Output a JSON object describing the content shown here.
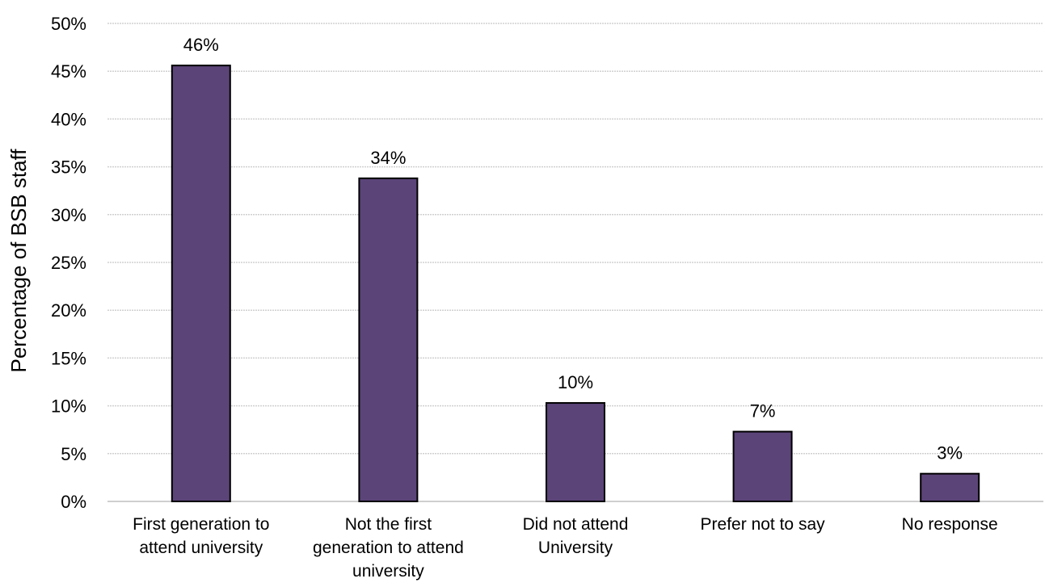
{
  "chart_data": {
    "type": "bar",
    "title": "",
    "xlabel": "",
    "ylabel": "Percentage of BSB staff",
    "ylim": [
      0,
      50
    ],
    "ytick_step": 5,
    "ytick_labels": [
      "0%",
      "5%",
      "10%",
      "15%",
      "20%",
      "25%",
      "30%",
      "35%",
      "40%",
      "45%",
      "50%"
    ],
    "categories": [
      [
        "First generation to",
        "attend university"
      ],
      [
        "Not the first",
        "generation to attend",
        "university"
      ],
      [
        "Did not attend",
        "University"
      ],
      [
        "Prefer not to say"
      ],
      [
        "No response"
      ]
    ],
    "values": [
      45.6,
      33.8,
      10.3,
      7.3,
      2.9
    ],
    "data_labels": [
      "46%",
      "34%",
      "10%",
      "7%",
      "3%"
    ],
    "grid": true,
    "legend": "none",
    "colors": {
      "bar_fill": "#5b4478",
      "bar_stroke": "#000000",
      "grid": "#d0d0d0",
      "axis": "#bfbfbf"
    }
  }
}
